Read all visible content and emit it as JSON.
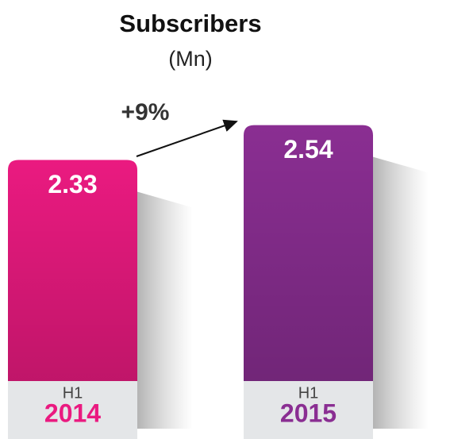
{
  "chart_data": {
    "type": "bar",
    "title": "Subscribers",
    "subtitle": "(Mn)",
    "annotation": "+9%",
    "categories": [
      [
        "H1",
        "2014"
      ],
      [
        "H1",
        "2015"
      ]
    ],
    "values": [
      2.33,
      2.54
    ],
    "colors": [
      "#ea1a80",
      "#8a2e92"
    ],
    "ylim": [
      1,
      2.6
    ]
  }
}
